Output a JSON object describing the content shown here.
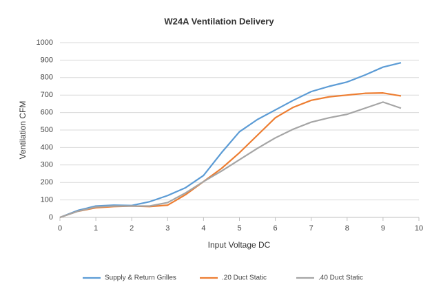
{
  "chart_data": {
    "type": "line",
    "title": "W24A   Ventilation Delivery",
    "x_label": "Input Voltage DC",
    "y_label": "Ventilation CFM",
    "x": [
      0,
      0.5,
      1,
      1.5,
      2,
      2.5,
      3,
      3.5,
      4,
      4.5,
      5,
      5.5,
      6,
      6.5,
      7,
      7.5,
      8,
      8.5,
      9,
      9.5
    ],
    "series": [
      {
        "name": "Supply & Return Grilles",
        "color": "#5b9bd5",
        "values": [
          0,
          40,
          65,
          70,
          68,
          90,
          125,
          170,
          240,
          370,
          490,
          560,
          615,
          670,
          720,
          750,
          775,
          815,
          860,
          885
        ]
      },
      {
        "name": ".20 Duct Static",
        "color": "#ed7d31",
        "values": [
          0,
          35,
          55,
          62,
          65,
          62,
          70,
          130,
          205,
          280,
          370,
          470,
          570,
          630,
          670,
          690,
          700,
          710,
          712,
          695
        ]
      },
      {
        "name": ".40 Duct Static",
        "color": "#a5a5a5",
        "values": [
          0,
          35,
          60,
          65,
          65,
          65,
          85,
          140,
          205,
          265,
          330,
          395,
          455,
          505,
          545,
          570,
          590,
          625,
          660,
          625
        ]
      }
    ],
    "xlim": [
      0,
      10
    ],
    "xticks": [
      0,
      1,
      2,
      3,
      4,
      5,
      6,
      7,
      8,
      9,
      10
    ],
    "ylim": [
      0,
      1000
    ],
    "yticks": [
      0,
      100,
      200,
      300,
      400,
      500,
      600,
      700,
      800,
      900,
      1000
    ],
    "grid": true,
    "legend": "bottom"
  }
}
